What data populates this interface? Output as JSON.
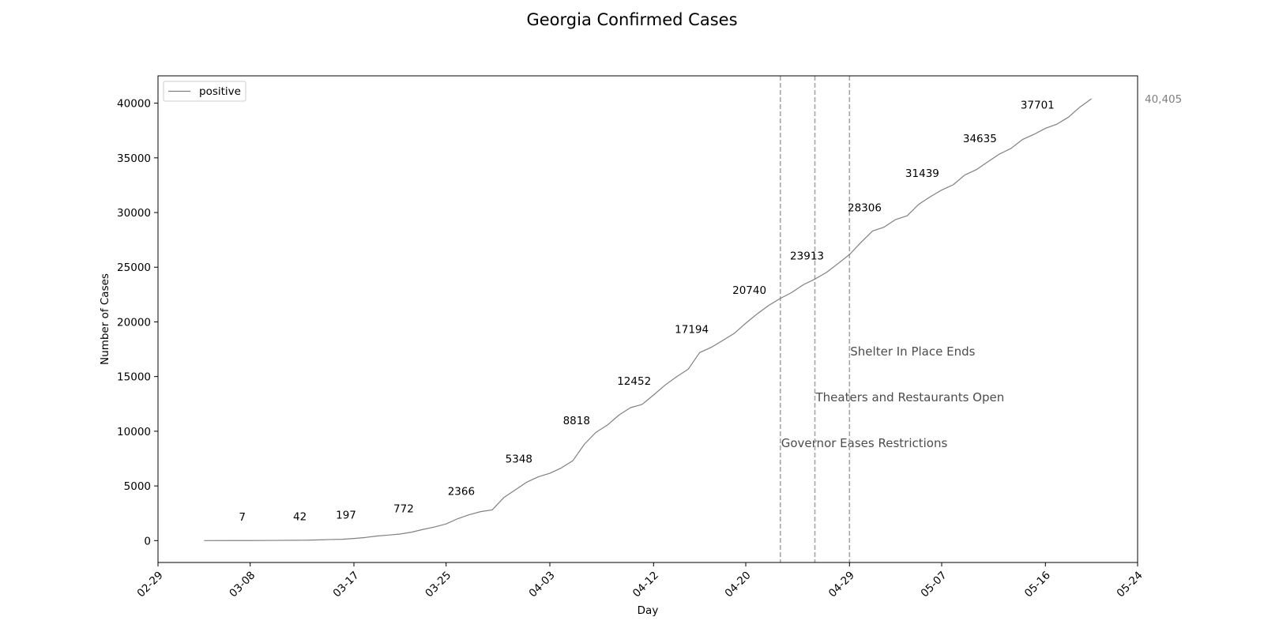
{
  "chart_data": {
    "type": "line",
    "title": "Georgia Confirmed Cases",
    "xlabel": "Day",
    "ylabel": "Number of Cases",
    "xlim": [
      "2020-02-29",
      "2020-05-24"
    ],
    "ylim": [
      -2000,
      42500
    ],
    "x_ticks": [
      {
        "date": "2020-02-29",
        "label": "02-29"
      },
      {
        "date": "2020-03-08",
        "label": "03-08"
      },
      {
        "date": "2020-03-17",
        "label": "03-17"
      },
      {
        "date": "2020-03-25",
        "label": "03-25"
      },
      {
        "date": "2020-04-03",
        "label": "04-03"
      },
      {
        "date": "2020-04-12",
        "label": "04-12"
      },
      {
        "date": "2020-04-20",
        "label": "04-20"
      },
      {
        "date": "2020-04-29",
        "label": "04-29"
      },
      {
        "date": "2020-05-07",
        "label": "05-07"
      },
      {
        "date": "2020-05-16",
        "label": "05-16"
      },
      {
        "date": "2020-05-24",
        "label": "05-24"
      }
    ],
    "y_ticks": [
      0,
      5000,
      10000,
      15000,
      20000,
      25000,
      30000,
      35000,
      40000
    ],
    "grid": false,
    "legend_position": "top-left",
    "series": [
      {
        "name": "positive",
        "color": "#808080",
        "points": [
          [
            "2020-03-04",
            2
          ],
          [
            "2020-03-06",
            3
          ],
          [
            "2020-03-08",
            7
          ],
          [
            "2020-03-10",
            17
          ],
          [
            "2020-03-12",
            31
          ],
          [
            "2020-03-13",
            42
          ],
          [
            "2020-03-14",
            66
          ],
          [
            "2020-03-15",
            99
          ],
          [
            "2020-03-16",
            121
          ],
          [
            "2020-03-17",
            197
          ],
          [
            "2020-03-18",
            287
          ],
          [
            "2020-03-19",
            420
          ],
          [
            "2020-03-20",
            507
          ],
          [
            "2020-03-21",
            600
          ],
          [
            "2020-03-22",
            772
          ],
          [
            "2020-03-23",
            1026
          ],
          [
            "2020-03-24",
            1247
          ],
          [
            "2020-03-25",
            1525
          ],
          [
            "2020-03-26",
            2000
          ],
          [
            "2020-03-27",
            2366
          ],
          [
            "2020-03-28",
            2651
          ],
          [
            "2020-03-29",
            2809
          ],
          [
            "2020-03-30",
            3929
          ],
          [
            "2020-03-31",
            4638
          ],
          [
            "2020-04-01",
            5348
          ],
          [
            "2020-04-02",
            5831
          ],
          [
            "2020-04-03",
            6160
          ],
          [
            "2020-04-04",
            6647
          ],
          [
            "2020-04-05",
            7314
          ],
          [
            "2020-04-06",
            8818
          ],
          [
            "2020-04-07",
            9901
          ],
          [
            "2020-04-08",
            10566
          ],
          [
            "2020-04-09",
            11483
          ],
          [
            "2020-04-10",
            12159
          ],
          [
            "2020-04-11",
            12452
          ],
          [
            "2020-04-12",
            13315
          ],
          [
            "2020-04-13",
            14223
          ],
          [
            "2020-04-14",
            14987
          ],
          [
            "2020-04-15",
            15669
          ],
          [
            "2020-04-16",
            17194
          ],
          [
            "2020-04-17",
            17669
          ],
          [
            "2020-04-18",
            18301
          ],
          [
            "2020-04-19",
            18947
          ],
          [
            "2020-04-20",
            19881
          ],
          [
            "2020-04-21",
            20740
          ],
          [
            "2020-04-22",
            21512
          ],
          [
            "2020-04-23",
            22147
          ],
          [
            "2020-04-24",
            22695
          ],
          [
            "2020-04-25",
            23401
          ],
          [
            "2020-04-26",
            23913
          ],
          [
            "2020-04-27",
            24523
          ],
          [
            "2020-04-28",
            25329
          ],
          [
            "2020-04-29",
            26155
          ],
          [
            "2020-04-30",
            27270
          ],
          [
            "2020-05-01",
            28306
          ],
          [
            "2020-05-02",
            28665
          ],
          [
            "2020-05-03",
            29360
          ],
          [
            "2020-05-04",
            29700
          ],
          [
            "2020-05-05",
            30743
          ],
          [
            "2020-05-06",
            31439
          ],
          [
            "2020-05-07",
            32060
          ],
          [
            "2020-05-08",
            32539
          ],
          [
            "2020-05-09",
            33429
          ],
          [
            "2020-05-10",
            33914
          ],
          [
            "2020-05-11",
            34635
          ],
          [
            "2020-05-12",
            35343
          ],
          [
            "2020-05-13",
            35848
          ],
          [
            "2020-05-14",
            36669
          ],
          [
            "2020-05-15",
            37147
          ],
          [
            "2020-05-16",
            37701
          ],
          [
            "2020-05-17",
            38081
          ],
          [
            "2020-05-18",
            38721
          ],
          [
            "2020-05-19",
            39648
          ],
          [
            "2020-05-20",
            40405
          ]
        ]
      }
    ],
    "data_labels": [
      {
        "date": "2020-03-08",
        "value": 7,
        "text": "7"
      },
      {
        "date": "2020-03-13",
        "value": 42,
        "text": "42"
      },
      {
        "date": "2020-03-17",
        "value": 197,
        "text": "197"
      },
      {
        "date": "2020-03-22",
        "value": 772,
        "text": "772"
      },
      {
        "date": "2020-03-27",
        "value": 2366,
        "text": "2366"
      },
      {
        "date": "2020-04-01",
        "value": 5348,
        "text": "5348"
      },
      {
        "date": "2020-04-06",
        "value": 8818,
        "text": "8818"
      },
      {
        "date": "2020-04-11",
        "value": 12452,
        "text": "12452"
      },
      {
        "date": "2020-04-16",
        "value": 17194,
        "text": "17194"
      },
      {
        "date": "2020-04-21",
        "value": 20740,
        "text": "20740"
      },
      {
        "date": "2020-04-26",
        "value": 23913,
        "text": "23913"
      },
      {
        "date": "2020-05-01",
        "value": 28306,
        "text": "28306"
      },
      {
        "date": "2020-05-06",
        "value": 31439,
        "text": "31439"
      },
      {
        "date": "2020-05-11",
        "value": 34635,
        "text": "34635"
      },
      {
        "date": "2020-05-16",
        "value": 37701,
        "text": "37701"
      }
    ],
    "end_label": {
      "date": "2020-05-20",
      "value": 40405,
      "text": "40,405"
    },
    "events": [
      {
        "date": "2020-04-23",
        "label": "Governor Eases Restrictions",
        "label_y": 8900
      },
      {
        "date": "2020-04-26",
        "label": "Theaters and Restaurants Open",
        "label_y": 13100
      },
      {
        "date": "2020-04-29",
        "label": "Shelter In Place Ends",
        "label_y": 17300
      }
    ],
    "event_line_color": "#a6a6a6"
  }
}
